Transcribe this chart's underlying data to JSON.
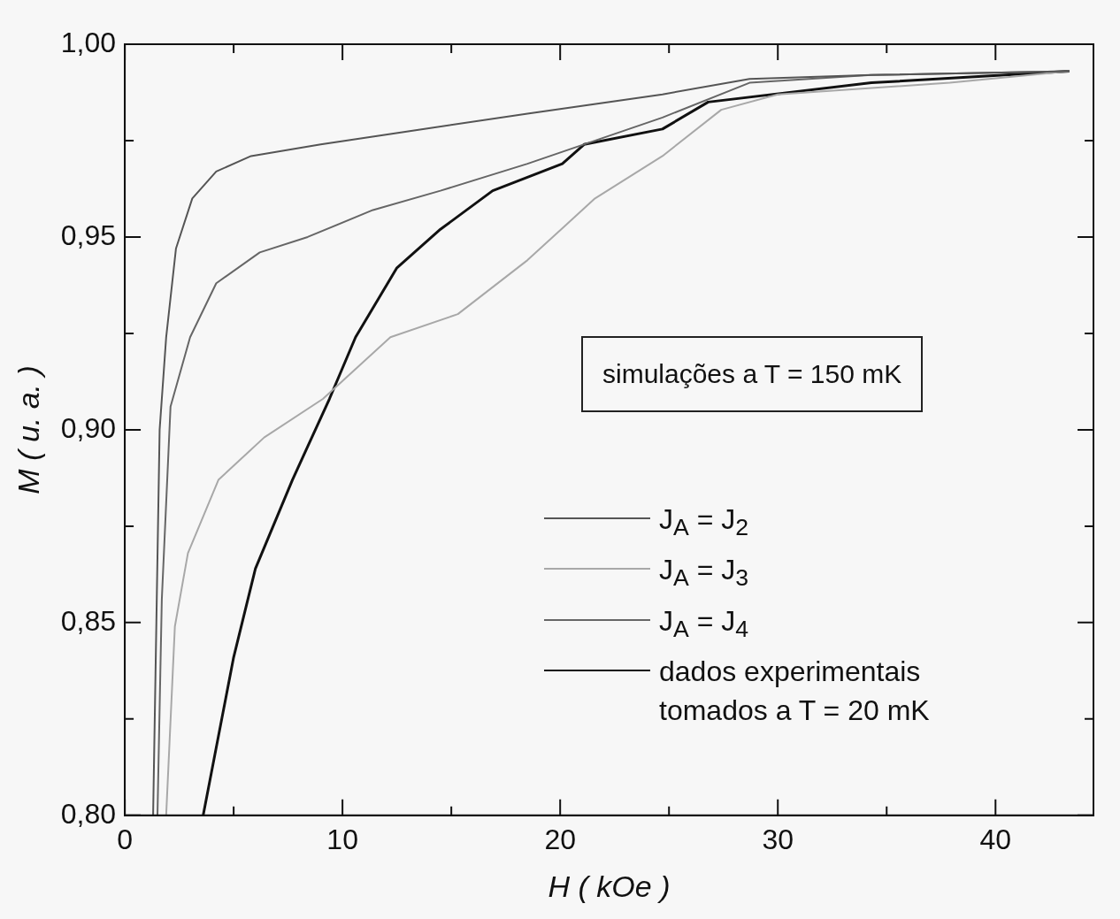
{
  "chart_data": {
    "type": "line",
    "xlabel": "H ( kOe )",
    "ylabel": "M ( u. a. )",
    "annotations": [
      "simulações a T = 150 mK"
    ],
    "xlim": [
      0,
      44.5
    ],
    "ylim": [
      0.8,
      1.0
    ],
    "xticks": [
      0,
      {
        "value": 5,
        "label": null
      },
      10,
      {
        "value": 15,
        "label": null
      },
      20,
      {
        "value": 25,
        "label": null
      },
      30,
      {
        "value": 35,
        "label": null
      },
      40
    ],
    "yticks": [
      {
        "value": 0.8,
        "label": "0,80"
      },
      {
        "value": 0.825,
        "label": null
      },
      {
        "value": 0.85,
        "label": "0,85"
      },
      {
        "value": 0.875,
        "label": null
      },
      {
        "value": 0.9,
        "label": "0,90"
      },
      {
        "value": 0.925,
        "label": null
      },
      {
        "value": 0.95,
        "label": "0,95"
      },
      {
        "value": 0.975,
        "label": null
      },
      {
        "value": 1.0,
        "label": "1,00"
      }
    ],
    "grid": false,
    "legend": "bottom right",
    "marker": "none",
    "line_style": "solid",
    "series": [
      {
        "name": "J$_{A}$ = J$_{2}$",
        "color": "#555555",
        "x": [
          1.3,
          1.45,
          1.6,
          1.9,
          2.35,
          3.1,
          4.2,
          5.8,
          9.0,
          13.7,
          18.5,
          24.7,
          28.7,
          34.3,
          43.4
        ],
        "values": [
          0.8,
          0.85,
          0.9,
          0.924,
          0.947,
          0.96,
          0.967,
          0.971,
          0.974,
          0.978,
          0.982,
          0.987,
          0.991,
          0.992,
          0.993
        ]
      },
      {
        "name": "J$_{A}$ = J$_{3}$",
        "color": "#a8a8a8",
        "x": [
          1.9,
          2.3,
          2.9,
          4.3,
          6.4,
          9.1,
          12.2,
          15.3,
          18.5,
          21.6,
          24.7,
          27.4,
          30.0,
          37.9,
          43.4
        ],
        "values": [
          0.8,
          0.849,
          0.868,
          0.887,
          0.898,
          0.908,
          0.924,
          0.93,
          0.944,
          0.96,
          0.971,
          0.983,
          0.987,
          0.99,
          0.993
        ]
      },
      {
        "name": "J$_{A}$ = J$_{4}$",
        "color": "#666666",
        "x": [
          1.5,
          1.7,
          2.1,
          3.0,
          4.2,
          6.2,
          8.4,
          11.4,
          14.5,
          18.5,
          24.7,
          28.7,
          34.3,
          43.4
        ],
        "values": [
          0.8,
          0.856,
          0.906,
          0.924,
          0.938,
          0.946,
          0.95,
          0.957,
          0.962,
          0.969,
          0.981,
          0.99,
          0.992,
          0.993
        ]
      },
      {
        "name": "dados experimentais tomados a T = 20 mK",
        "color": "#111111",
        "x": [
          3.6,
          5.0,
          6.0,
          7.7,
          9.4,
          10.6,
          12.5,
          14.5,
          16.9,
          20.1,
          21.1,
          24.7,
          26.8,
          34.3,
          43.4
        ],
        "values": [
          0.8,
          0.841,
          0.864,
          0.887,
          0.908,
          0.924,
          0.942,
          0.952,
          0.962,
          0.969,
          0.974,
          0.978,
          0.985,
          0.99,
          0.993
        ]
      }
    ]
  }
}
